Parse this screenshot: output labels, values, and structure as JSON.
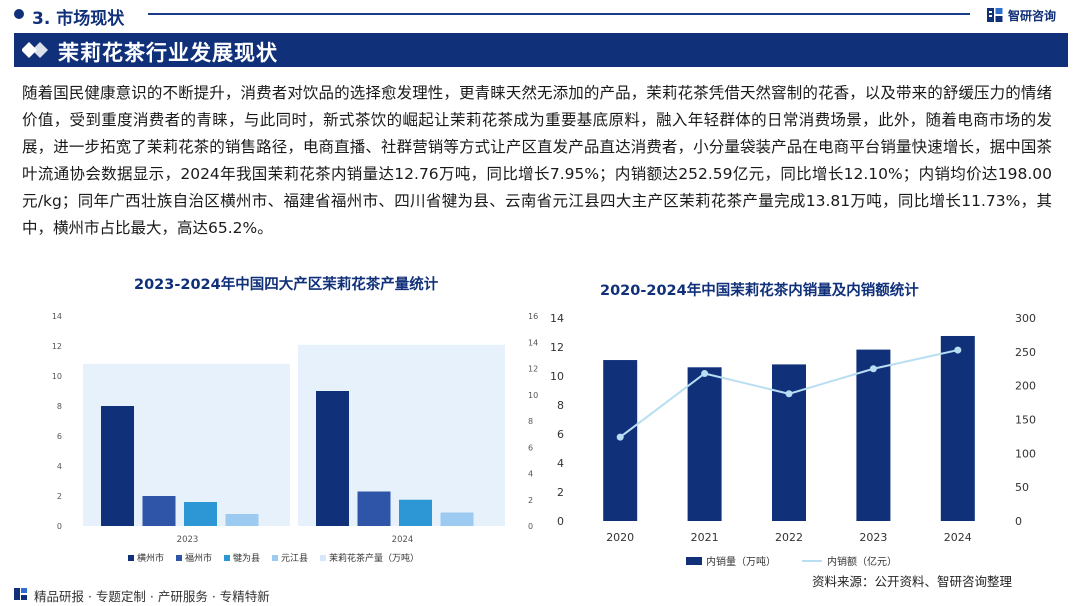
{
  "header": {
    "section_title": "3. 市场现状",
    "brand_name": "智研咨询"
  },
  "banner": {
    "title": "茉莉花茶行业发展现状"
  },
  "body_text": "随着国民健康意识的不断提升，消费者对饮品的选择愈发理性，更青睐天然无添加的产品，茉莉花茶凭借天然窨制的花香，以及带来的舒缓压力的情绪价值，受到重度消费者的青睐，与此同时，新式茶饮的崛起让茉莉花茶成为重要基底原料，融入年轻群体的日常消费场景，此外，随着电商市场的发展，进一步拓宽了茉莉花茶的销售路径，电商直播、社群营销等方式让产区直发产品直达消费者，小分量袋装产品在电商平台销量快速增长，据中国茶叶流通协会数据显示，2024年我国茉莉花茶内销量达12.76万吨，同比增长7.95%；内销额达252.59亿元，同比增长12.10%；内销均价达198.00元/kg；同年广西壮族自治区横州市、福建省福州市、四川省犍为县、云南省元江县四大主产区茉莉花茶产量完成13.81万吨，同比增长11.73%，其中，横州市占比最大，高达65.2%。",
  "chart_data": [
    {
      "type": "bar",
      "title": "2023-2024年中国四大产区茉莉花茶产量统计",
      "categories": [
        "2023",
        "2024"
      ],
      "series": [
        {
          "name": "横州市",
          "values": [
            8.0,
            9.0
          ],
          "color": "#10307a",
          "axis": "left"
        },
        {
          "name": "福州市",
          "values": [
            2.0,
            2.3
          ],
          "color": "#2e55a8",
          "axis": "left"
        },
        {
          "name": "犍为县",
          "values": [
            1.6,
            1.75
          ],
          "color": "#2d96d4",
          "axis": "left"
        },
        {
          "name": "元江县",
          "values": [
            0.8,
            0.9
          ],
          "color": "#9ccaf0",
          "axis": "left"
        },
        {
          "name": "茉莉花茶产量（万吨）",
          "values": [
            12.36,
            13.81
          ],
          "color": "#e6f1fb",
          "axis": "right"
        }
      ],
      "y_left": {
        "min": 0,
        "max": 14,
        "ticks": [
          0,
          2,
          4,
          6,
          8,
          10,
          12,
          14
        ]
      },
      "y_right": {
        "min": 0,
        "max": 16,
        "ticks": [
          0,
          2,
          4,
          6,
          8,
          10,
          12,
          14,
          16
        ]
      },
      "legend_position": "bottom",
      "grid": false
    },
    {
      "type": "bar+line",
      "title": "2020-2024年中国茉莉花茶内销量及内销额统计",
      "categories": [
        "2020",
        "2021",
        "2022",
        "2023",
        "2024"
      ],
      "series": [
        {
          "name": "内销量（万吨）",
          "type": "bar",
          "values": [
            11.1,
            10.6,
            10.8,
            11.82,
            12.76
          ],
          "color": "#10307a",
          "axis": "left"
        },
        {
          "name": "内销额（亿元）",
          "type": "line",
          "values": [
            124,
            218,
            188,
            225,
            252.59
          ],
          "color": "#b9def2",
          "axis": "right"
        }
      ],
      "y_left": {
        "min": 0,
        "max": 14,
        "ticks": [
          0,
          2,
          4,
          6,
          8,
          10,
          12,
          14
        ]
      },
      "y_right": {
        "min": 0,
        "max": 300,
        "ticks": [
          0,
          50,
          100,
          150,
          200,
          250,
          300
        ]
      },
      "legend_position": "bottom",
      "grid": false
    }
  ],
  "source": "资料来源：公开资料、智研咨询整理",
  "footer": "精品研报 · 专题定制 · 产研服务 · 专精特新"
}
